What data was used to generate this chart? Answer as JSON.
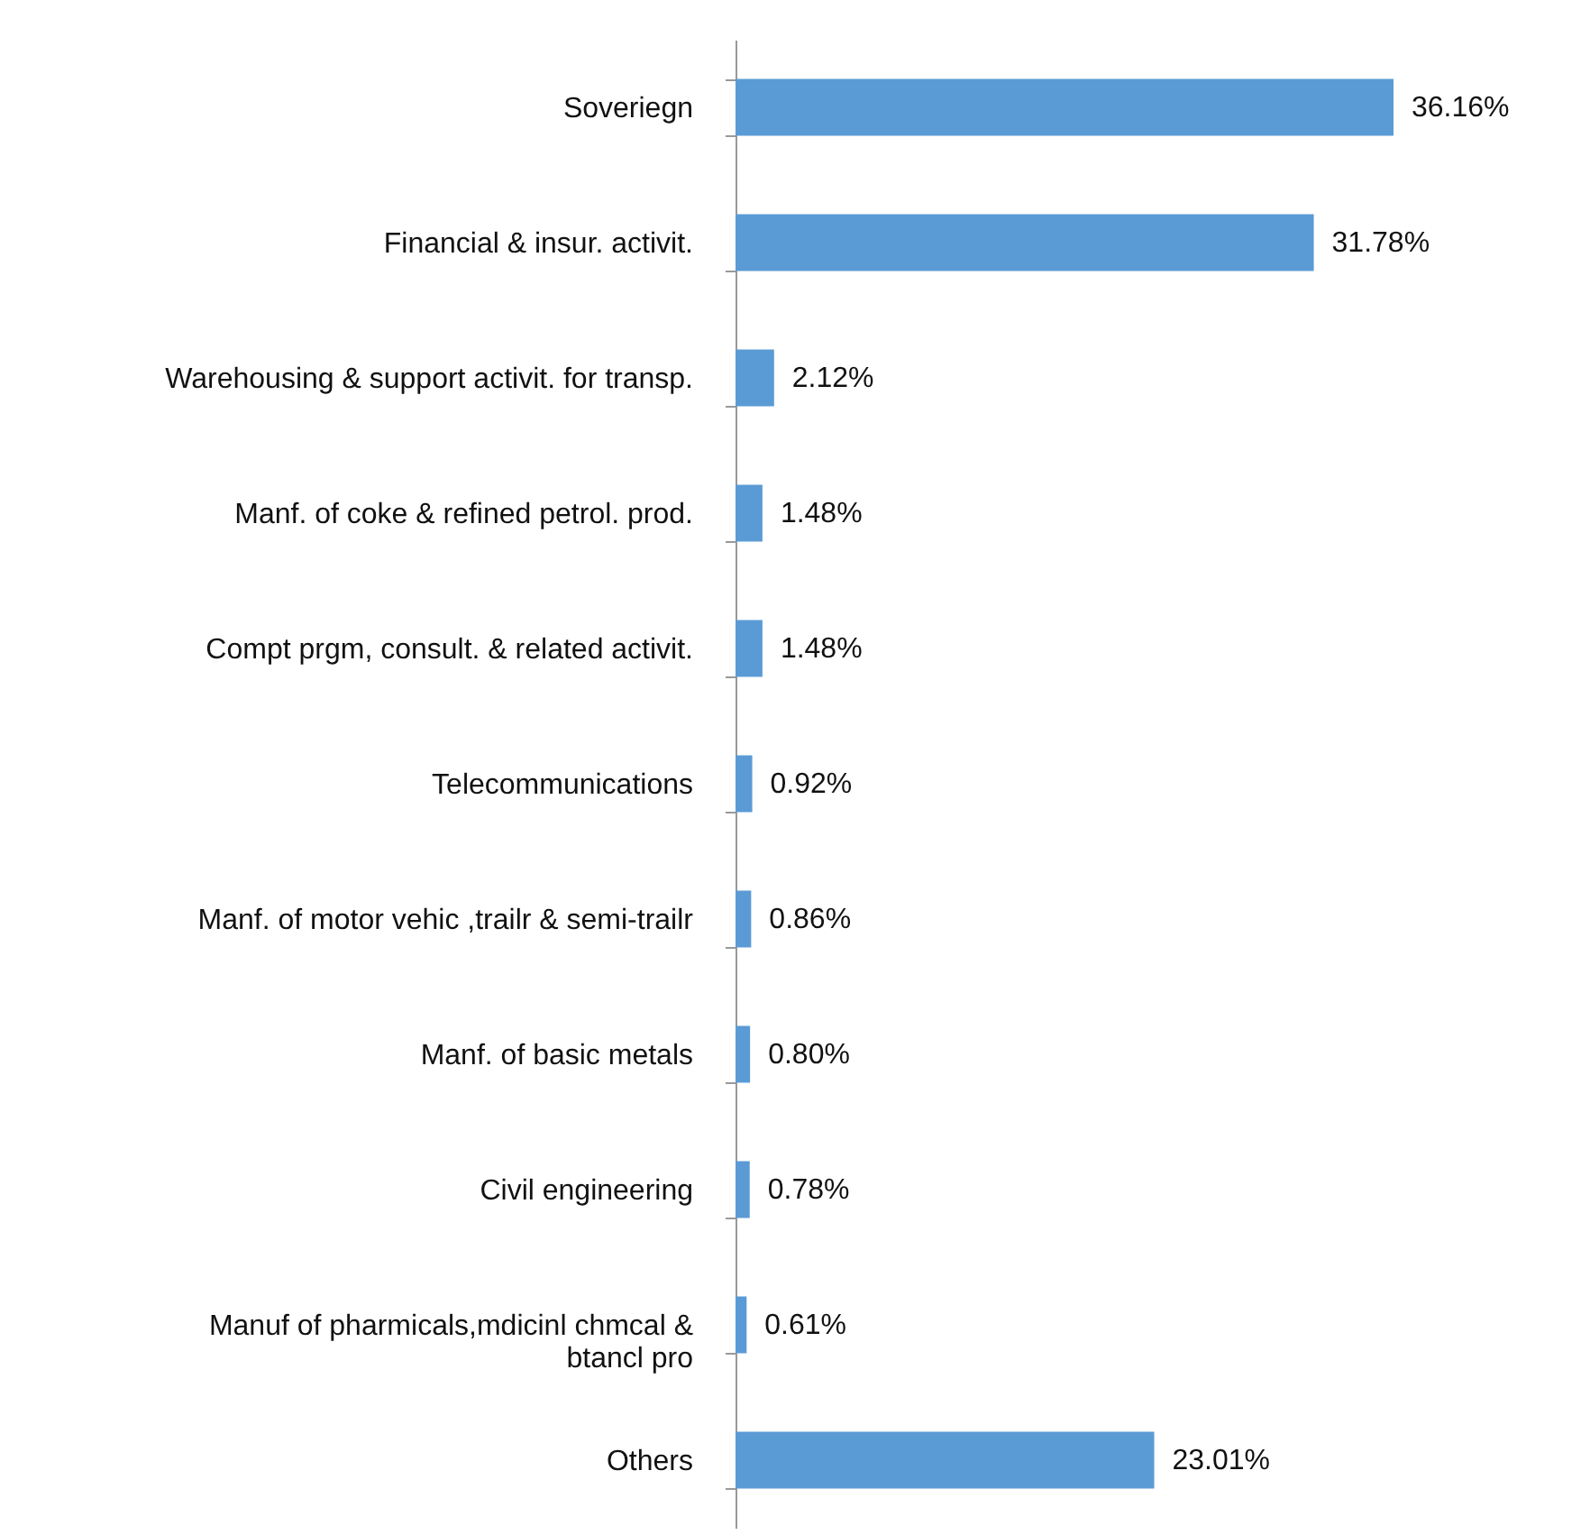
{
  "chart_data": {
    "type": "bar",
    "orientation": "horizontal",
    "categories": [
      "Soveriegn",
      "Financial & insur. activit.",
      "Warehousing & support activit. for transp.",
      "Manf. of coke & refined petrol. prod.",
      "Compt prgm, consult. & related activit.",
      "Telecommunications",
      "Manf. of motor vehic ,trailr & semi-trailr",
      "Manf. of basic metals",
      "Civil engineering",
      "Manuf of pharmicals,mdicinl chmcal & btancl pro",
      "Others"
    ],
    "values": [
      36.16,
      31.78,
      2.12,
      1.48,
      1.48,
      0.92,
      0.86,
      0.8,
      0.78,
      0.61,
      23.01
    ],
    "value_labels": [
      "36.16%",
      "31.78%",
      "2.12%",
      "1.48%",
      "1.48%",
      "0.92%",
      "0.86%",
      "0.80%",
      "0.78%",
      "0.61%",
      "23.01%"
    ],
    "color": "#5b9bd5"
  }
}
